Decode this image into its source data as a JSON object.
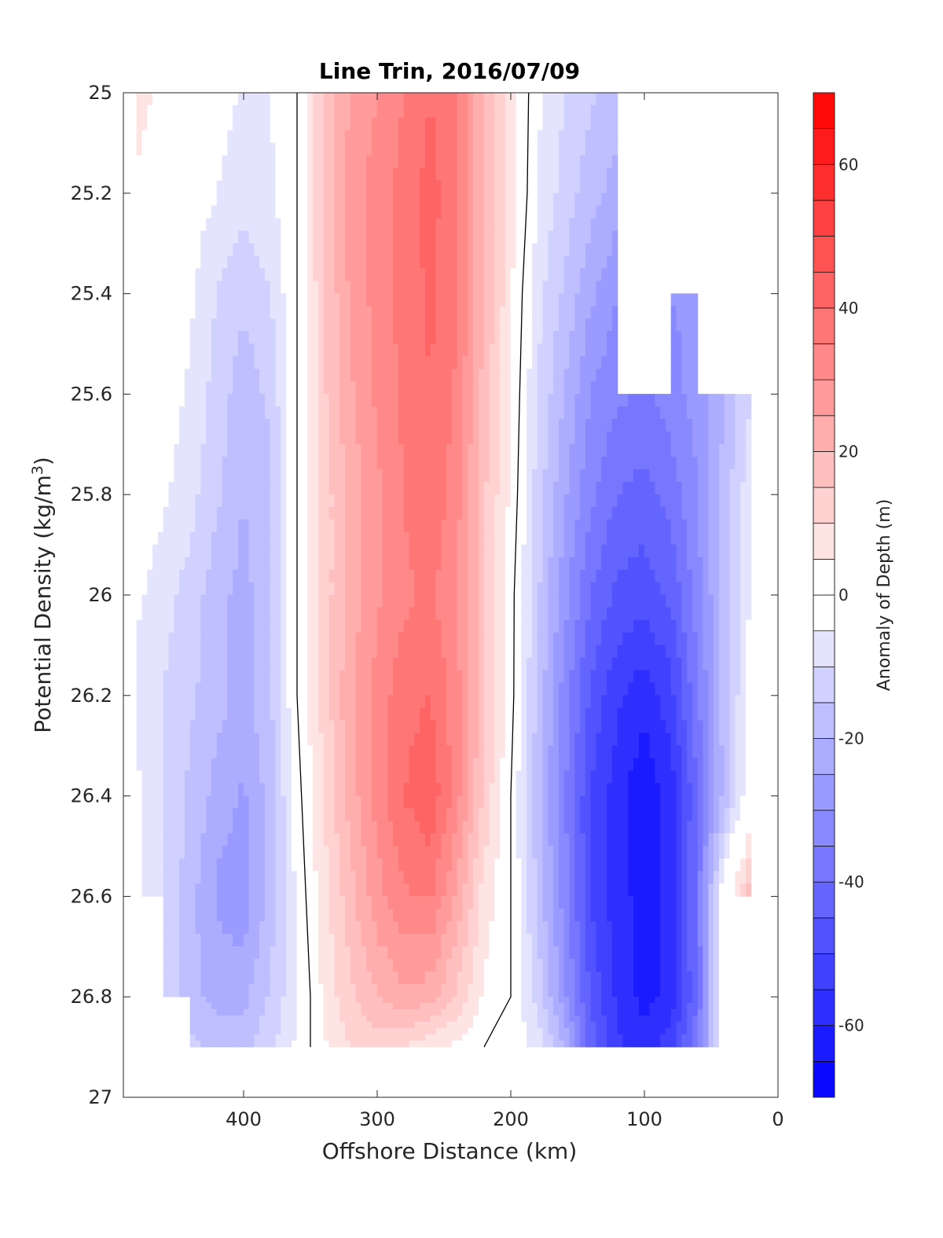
{
  "chart_data": {
    "type": "heatmap",
    "subtype": "filled-contour",
    "title": "Line Trin, 2016/07/09",
    "xlabel": "Offshore Distance (km)",
    "ylabel_main": "Potential Density (kg/m",
    "ylabel_sup": "3",
    "ylabel_close": ")",
    "colorbar_label": "Anomaly of Depth (m)",
    "x_reversed": true,
    "y_reversed": true,
    "xlim": [
      0,
      490
    ],
    "ylim": [
      25,
      27
    ],
    "clim": [
      -70,
      70
    ],
    "contour_step": 5,
    "zero_contour_color": "#000000",
    "positive_color": "#ff0000",
    "negative_color": "#0000ff",
    "x_ticks": [
      {
        "value": 400,
        "label": "400"
      },
      {
        "value": 300,
        "label": "300"
      },
      {
        "value": 200,
        "label": "200"
      },
      {
        "value": 100,
        "label": "100"
      },
      {
        "value": 0,
        "label": "0"
      }
    ],
    "y_ticks": [
      {
        "value": 25,
        "label": "25"
      },
      {
        "value": 25.2,
        "label": "25.2"
      },
      {
        "value": 25.4,
        "label": "25.4"
      },
      {
        "value": 25.6,
        "label": "25.6"
      },
      {
        "value": 25.8,
        "label": "25.8"
      },
      {
        "value": 26,
        "label": "26"
      },
      {
        "value": 26.2,
        "label": "26.2"
      },
      {
        "value": 26.4,
        "label": "26.4"
      },
      {
        "value": 26.6,
        "label": "26.6"
      },
      {
        "value": 26.8,
        "label": "26.8"
      },
      {
        "value": 27,
        "label": "27"
      }
    ],
    "colorbar_ticks": [
      {
        "value": 60,
        "label": "60"
      },
      {
        "value": 40,
        "label": "40"
      },
      {
        "value": 20,
        "label": "20"
      },
      {
        "value": 0,
        "label": "0"
      },
      {
        "value": -20,
        "label": "-20"
      },
      {
        "value": -40,
        "label": "-40"
      },
      {
        "value": -60,
        "label": "-60"
      }
    ],
    "x_grid": [
      480,
      460,
      440,
      420,
      400,
      380,
      360,
      340,
      320,
      300,
      280,
      260,
      240,
      220,
      200,
      180,
      160,
      140,
      120,
      100,
      80,
      60,
      40,
      20
    ],
    "density_levels": [
      25.0,
      25.2,
      25.4,
      25.6,
      25.8,
      26.0,
      26.2,
      26.4,
      26.6,
      26.8,
      26.9
    ],
    "anomaly_grid": [
      [
        8,
        3,
        0,
        -2,
        -6,
        -5,
        0,
        15,
        25,
        30,
        35,
        40,
        35,
        20,
        8,
        -4,
        -10,
        -14,
        -18,
        null,
        null,
        null,
        null,
        null
      ],
      [
        4,
        0,
        -2,
        -5,
        -8,
        -6,
        0,
        16,
        28,
        32,
        37,
        42,
        36,
        20,
        8,
        -5,
        -12,
        -18,
        -22,
        null,
        null,
        null,
        null,
        null
      ],
      [
        0,
        0,
        -4,
        -10,
        -14,
        -10,
        0,
        14,
        26,
        32,
        37,
        41,
        36,
        20,
        6,
        -8,
        -16,
        -24,
        -30,
        null,
        -30,
        -28,
        null,
        null
      ],
      [
        0,
        -2,
        -6,
        -12,
        -18,
        -14,
        0,
        14,
        24,
        31,
        36,
        40,
        34,
        18,
        5,
        -10,
        -20,
        -30,
        -34,
        -36,
        -32,
        -28,
        -20,
        -10
      ],
      [
        0,
        -4,
        -8,
        -14,
        -20,
        -16,
        0,
        12,
        22,
        29,
        35,
        39,
        32,
        16,
        4,
        -12,
        -24,
        -34,
        -40,
        -42,
        -38,
        -30,
        -18,
        -6
      ],
      [
        -4,
        -8,
        -12,
        -18,
        -22,
        -16,
        0,
        12,
        22,
        29,
        34,
        36,
        30,
        16,
        2,
        -14,
        -28,
        -40,
        -46,
        -48,
        -44,
        -32,
        -18,
        -4
      ],
      [
        -6,
        -10,
        -14,
        -18,
        -22,
        -16,
        0,
        12,
        24,
        32,
        38,
        40,
        32,
        16,
        2,
        -16,
        -32,
        -46,
        -54,
        -58,
        -52,
        -36,
        -18,
        -2
      ],
      [
        -4,
        -10,
        -16,
        -22,
        -26,
        -18,
        -2,
        10,
        22,
        32,
        40,
        44,
        32,
        14,
        0,
        -18,
        -34,
        -50,
        -58,
        -64,
        -58,
        -40,
        -18,
        0
      ],
      [
        -4,
        -10,
        -18,
        -26,
        -28,
        -18,
        -4,
        8,
        18,
        28,
        34,
        36,
        24,
        8,
        0,
        -16,
        -32,
        -50,
        -58,
        -62,
        -58,
        -38,
        0,
        18
      ],
      [
        null,
        -10,
        -18,
        -22,
        -22,
        -14,
        -6,
        6,
        14,
        20,
        24,
        22,
        14,
        4,
        0,
        -12,
        -28,
        -46,
        -56,
        -62,
        -58,
        -40,
        0,
        null
      ],
      [
        null,
        null,
        -14,
        -16,
        -16,
        -12,
        -4,
        4,
        10,
        12,
        10,
        6,
        4,
        0,
        -2,
        -6,
        -20,
        -42,
        -54,
        -58,
        -52,
        -36,
        0,
        null
      ]
    ],
    "notes": ""
  }
}
